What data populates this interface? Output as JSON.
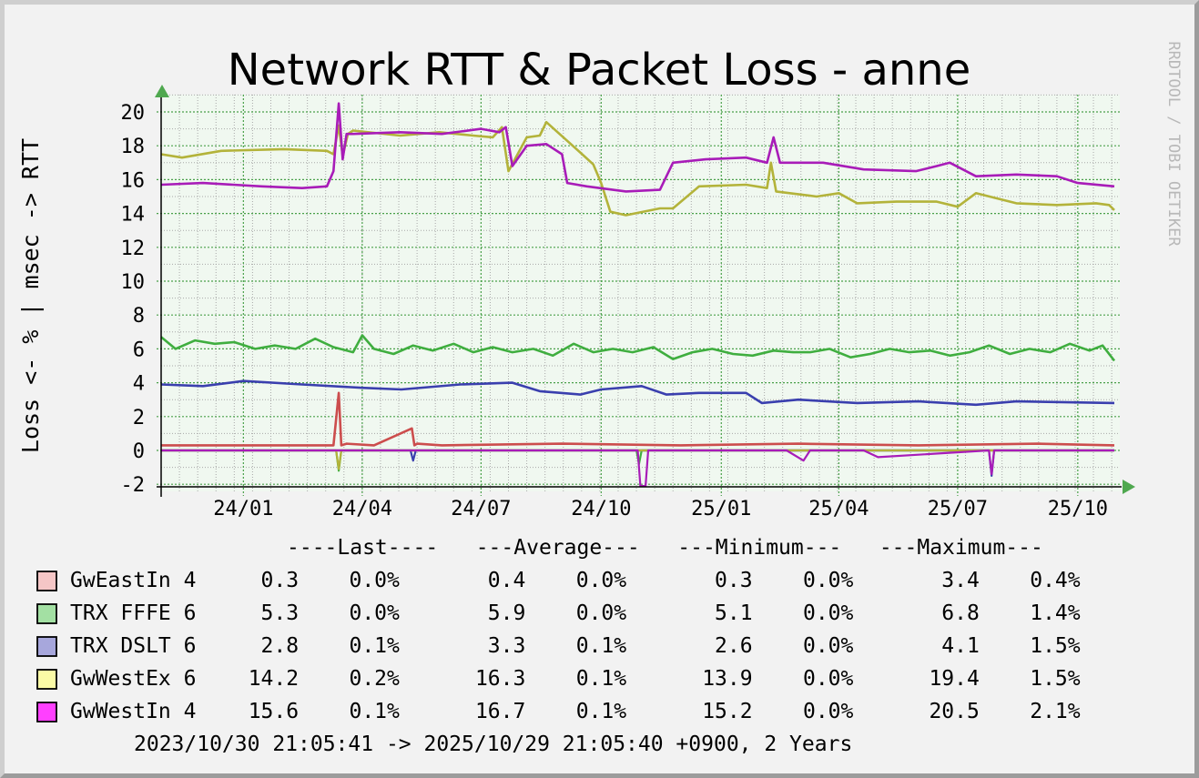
{
  "chart_data": {
    "type": "line",
    "title": "Network RTT & Packet Loss - anne",
    "ylabel": "Loss <- % | msec -> RTT",
    "watermark": "RRDTOOL / TOBI OETIKER",
    "ylim": [
      -2,
      21
    ],
    "xlim": [
      "2023-10-30",
      "2025-10-29"
    ],
    "y_ticks": [
      "-2",
      "0",
      "2",
      "4",
      "6",
      "8",
      "10",
      "12",
      "14",
      "16",
      "18",
      "20"
    ],
    "x_ticks": [
      {
        "label": "24/01",
        "date": "2024-01-01"
      },
      {
        "label": "24/04",
        "date": "2024-04-01"
      },
      {
        "label": "24/07",
        "date": "2024-07-01"
      },
      {
        "label": "24/10",
        "date": "2024-10-01"
      },
      {
        "label": "25/01",
        "date": "2025-01-01"
      },
      {
        "label": "25/04",
        "date": "2025-04-01"
      },
      {
        "label": "25/07",
        "date": "2025-07-01"
      },
      {
        "label": "25/10",
        "date": "2025-10-01"
      }
    ],
    "grid": true,
    "colors": {
      "background": "#f2f2f2",
      "plot_area": "#f0f8f0",
      "grid_major": "#49a049",
      "grid_minor": "#a8a8a8",
      "axis_arrow": "#4fa84f"
    },
    "series": [
      {
        "name": "GwEastIn 4",
        "color": "#cc4d4d",
        "swatch": "#f5c6c6",
        "x": [
          "2023-10-30",
          "2024-03-10",
          "2024-03-14",
          "2024-03-16",
          "2024-03-20",
          "2024-04-10",
          "2024-05-09",
          "2024-05-11",
          "2024-05-13",
          "2024-06-01",
          "2024-09-01",
          "2024-12-01",
          "2025-03-01",
          "2025-06-01",
          "2025-09-01",
          "2025-10-29"
        ],
        "y": [
          0.3,
          0.3,
          3.4,
          0.3,
          0.4,
          0.3,
          1.3,
          0.3,
          0.4,
          0.3,
          0.4,
          0.3,
          0.4,
          0.3,
          0.4,
          0.3
        ]
      },
      {
        "name": "TRX FFFE 6",
        "color": "#3fae3f",
        "swatch": "#a3e0a3",
        "x": [
          "2023-10-30",
          "2023-11-10",
          "2023-11-25",
          "2023-12-10",
          "2023-12-25",
          "2024-01-10",
          "2024-01-25",
          "2024-02-10",
          "2024-02-25",
          "2024-03-10",
          "2024-03-25",
          "2024-04-01",
          "2024-04-10",
          "2024-04-25",
          "2024-05-10",
          "2024-05-25",
          "2024-06-10",
          "2024-06-25",
          "2024-07-10",
          "2024-07-25",
          "2024-08-10",
          "2024-08-25",
          "2024-09-10",
          "2024-09-25",
          "2024-10-10",
          "2024-10-25",
          "2024-11-10",
          "2024-11-25",
          "2024-12-10",
          "2024-12-25",
          "2025-01-10",
          "2025-01-25",
          "2025-02-10",
          "2025-02-25",
          "2025-03-10",
          "2025-03-25",
          "2025-04-10",
          "2025-04-25",
          "2025-05-10",
          "2025-05-25",
          "2025-06-10",
          "2025-06-25",
          "2025-07-10",
          "2025-07-25",
          "2025-08-10",
          "2025-08-25",
          "2025-09-10",
          "2025-09-25",
          "2025-10-10",
          "2025-10-20",
          "2025-10-29"
        ],
        "y": [
          6.7,
          6.0,
          6.5,
          6.3,
          6.4,
          6.0,
          6.2,
          6.0,
          6.6,
          6.1,
          5.8,
          6.8,
          6.0,
          5.7,
          6.2,
          5.9,
          6.3,
          5.8,
          6.1,
          5.8,
          6.0,
          5.6,
          6.3,
          5.8,
          6.0,
          5.8,
          6.1,
          5.4,
          5.8,
          6.0,
          5.7,
          5.6,
          5.9,
          5.8,
          5.8,
          6.0,
          5.5,
          5.7,
          6.0,
          5.8,
          5.9,
          5.6,
          5.8,
          6.2,
          5.7,
          6.0,
          5.8,
          6.3,
          5.9,
          6.2,
          5.3
        ]
      },
      {
        "name": "TRX DSLT 6",
        "color": "#3a3fae",
        "swatch": "#a7a7dc",
        "x": [
          "2023-10-30",
          "2023-12-01",
          "2024-01-01",
          "2024-02-15",
          "2024-04-01",
          "2024-05-01",
          "2024-06-15",
          "2024-07-25",
          "2024-08-15",
          "2024-09-15",
          "2024-10-01",
          "2024-11-01",
          "2024-11-20",
          "2024-12-15",
          "2025-01-20",
          "2025-02-01",
          "2025-03-01",
          "2025-04-15",
          "2025-06-01",
          "2025-07-15",
          "2025-08-15",
          "2025-10-29"
        ],
        "y": [
          3.9,
          3.8,
          4.1,
          3.9,
          3.7,
          3.6,
          3.9,
          4.0,
          3.5,
          3.3,
          3.6,
          3.8,
          3.3,
          3.4,
          3.4,
          2.8,
          3.0,
          2.8,
          2.9,
          2.7,
          2.9,
          2.8
        ]
      },
      {
        "name": "GwWestEx 6",
        "color": "#b3b33a",
        "swatch": "#fbfba6",
        "x": [
          "2023-10-30",
          "2023-11-15",
          "2023-12-15",
          "2024-02-01",
          "2024-03-05",
          "2024-03-10",
          "2024-03-14",
          "2024-03-17",
          "2024-03-21",
          "2024-03-25",
          "2024-04-30",
          "2024-05-30",
          "2024-06-25",
          "2024-07-10",
          "2024-07-17",
          "2024-07-22",
          "2024-08-05",
          "2024-08-15",
          "2024-08-20",
          "2024-09-15",
          "2024-09-25",
          "2024-10-01",
          "2024-10-08",
          "2024-10-20",
          "2024-11-15",
          "2024-11-25",
          "2024-12-15",
          "2025-01-20",
          "2025-02-05",
          "2025-02-08",
          "2025-02-12",
          "2025-03-15",
          "2025-04-01",
          "2025-04-15",
          "2025-05-15",
          "2025-06-15",
          "2025-07-01",
          "2025-07-15",
          "2025-08-15",
          "2025-09-15",
          "2025-10-15",
          "2025-10-25",
          "2025-10-29"
        ],
        "y": [
          17.5,
          17.3,
          17.7,
          17.8,
          17.7,
          17.5,
          19.2,
          17.4,
          18.7,
          18.9,
          18.6,
          18.8,
          18.6,
          18.5,
          19.1,
          16.5,
          18.5,
          18.6,
          19.4,
          17.6,
          16.9,
          15.8,
          14.1,
          13.9,
          14.3,
          14.3,
          15.6,
          15.7,
          15.5,
          17.0,
          15.3,
          15.0,
          15.2,
          14.6,
          14.7,
          14.7,
          14.4,
          15.2,
          14.6,
          14.5,
          14.6,
          14.5,
          14.2
        ]
      },
      {
        "name": "GwWestIn 4",
        "color": "#a81cb8",
        "swatch": "#ff40ff",
        "x": [
          "2023-10-30",
          "2023-12-01",
          "2024-01-15",
          "2024-02-15",
          "2024-03-05",
          "2024-03-10",
          "2024-03-14",
          "2024-03-17",
          "2024-03-20",
          "2024-03-25",
          "2024-04-30",
          "2024-06-01",
          "2024-07-01",
          "2024-07-15",
          "2024-07-20",
          "2024-07-25",
          "2024-08-05",
          "2024-08-20",
          "2024-09-01",
          "2024-09-05",
          "2024-09-20",
          "2024-10-20",
          "2024-11-15",
          "2024-11-25",
          "2024-12-20",
          "2025-01-20",
          "2025-02-05",
          "2025-02-10",
          "2025-02-15",
          "2025-03-20",
          "2025-04-20",
          "2025-05-30",
          "2025-06-15",
          "2025-06-25",
          "2025-07-15",
          "2025-08-15",
          "2025-09-15",
          "2025-10-01",
          "2025-10-29"
        ],
        "y": [
          15.7,
          15.8,
          15.6,
          15.5,
          15.6,
          16.5,
          20.5,
          17.2,
          18.7,
          18.7,
          18.8,
          18.7,
          19.0,
          18.8,
          19.1,
          16.8,
          18.0,
          18.1,
          17.5,
          15.8,
          15.6,
          15.3,
          15.4,
          17.0,
          17.2,
          17.3,
          17.0,
          18.5,
          17.0,
          17.0,
          16.6,
          16.5,
          16.8,
          17.0,
          16.2,
          16.3,
          16.2,
          15.8,
          15.6
        ]
      }
    ],
    "loss_series": [
      {
        "name": "GwEastIn 4",
        "x": [
          "2023-10-30",
          "2025-10-29"
        ],
        "y": [
          0,
          0
        ]
      },
      {
        "name": "TRX FFFE 6",
        "x": [
          "2023-10-30",
          "2024-03-12",
          "2024-03-14",
          "2024-03-16",
          "2024-10-28",
          "2024-10-30",
          "2024-11-01",
          "2025-10-29"
        ],
        "y": [
          0,
          0,
          -1.2,
          0,
          0,
          -0.8,
          0,
          0
        ]
      },
      {
        "name": "TRX DSLT 6",
        "x": [
          "2023-10-30",
          "2024-05-08",
          "2024-05-10",
          "2024-05-12",
          "2025-07-25",
          "2025-07-27",
          "2025-07-29",
          "2025-10-29"
        ],
        "y": [
          0,
          0,
          -0.6,
          0,
          0,
          -1.5,
          0,
          0
        ]
      },
      {
        "name": "GwWestEx 6",
        "x": [
          "2023-10-30",
          "2024-03-12",
          "2024-03-14",
          "2024-03-16",
          "2025-10-29"
        ],
        "y": [
          0,
          0,
          -1.1,
          0,
          0
        ]
      },
      {
        "name": "GwWestIn 4",
        "x": [
          "2023-10-30",
          "2024-10-29",
          "2024-10-31",
          "2024-11-04",
          "2024-11-06",
          "2025-02-20",
          "2025-03-05",
          "2025-03-10",
          "2025-04-20",
          "2025-05-01",
          "2025-07-25",
          "2025-07-27",
          "2025-07-29",
          "2025-10-29"
        ],
        "y": [
          0,
          0,
          -2.1,
          -2.1,
          0,
          0,
          -0.6,
          0,
          0,
          -0.4,
          0,
          -1.4,
          0,
          0
        ]
      }
    ]
  },
  "legend": {
    "header": "----Last----   ---Average---   ---Minimum---   ---Maximum---",
    "rows": [
      {
        "label": "GwEastIn 4",
        "values": "   0.3    0.0%       0.4    0.0%       0.3    0.0%       3.4    0.4%"
      },
      {
        "label": "TRX FFFE 6",
        "values": "   5.3    0.0%       5.9    0.0%       5.1    0.0%       6.8    1.4%"
      },
      {
        "label": "TRX DSLT 6",
        "values": "   2.8    0.1%       3.3    0.1%       2.6    0.0%       4.1    1.5%"
      },
      {
        "label": "GwWestEx 6",
        "values": "  14.2    0.2%      16.3    0.1%      13.9    0.0%      19.4    1.5%"
      },
      {
        "label": "GwWestIn 4",
        "values": "  15.6    0.1%      16.7    0.1%      15.2    0.0%      20.5    2.1%"
      }
    ],
    "footer": "2023/10/30 21:05:41 -> 2025/10/29 21:05:40 +0900, 2 Years"
  }
}
